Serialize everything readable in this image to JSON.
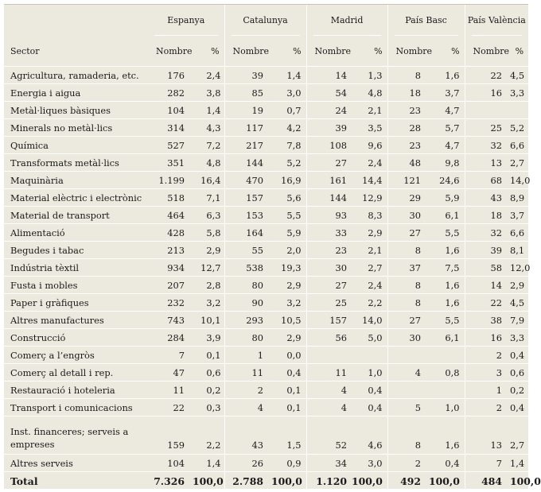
{
  "table": {
    "sector_header": "Sector",
    "regions": [
      "Espanya",
      "Catalunya",
      "Madrid",
      "País Basc",
      "País València"
    ],
    "sub_headers": {
      "count": "Nombre",
      "pct": "%"
    },
    "rows": [
      {
        "sector": "Agricultura, ramaderia, etc.",
        "values": [
          "176",
          "2,4",
          "39",
          "1,4",
          "14",
          "1,3",
          "8",
          "1,6",
          "22",
          "4,5"
        ]
      },
      {
        "sector": "Energia i aigua",
        "values": [
          "282",
          "3,8",
          "85",
          "3,0",
          "54",
          "4,8",
          "18",
          "3,7",
          "16",
          "3,3"
        ]
      },
      {
        "sector": "Metàl·liques bàsiques",
        "values": [
          "104",
          "1,4",
          "19",
          "0,7",
          "24",
          "2,1",
          "23",
          "4,7",
          "",
          ""
        ]
      },
      {
        "sector": "Minerals no metàl·lics",
        "values": [
          "314",
          "4,3",
          "117",
          "4,2",
          "39",
          "3,5",
          "28",
          "5,7",
          "25",
          "5,2"
        ]
      },
      {
        "sector": "Química",
        "values": [
          "527",
          "7,2",
          "217",
          "7,8",
          "108",
          "9,6",
          "23",
          "4,7",
          "32",
          "6,6"
        ]
      },
      {
        "sector": "Transformats metàl·lics",
        "values": [
          "351",
          "4,8",
          "144",
          "5,2",
          "27",
          "2,4",
          "48",
          "9,8",
          "13",
          "2,7"
        ]
      },
      {
        "sector": "Maquinària",
        "values": [
          "1.199",
          "16,4",
          "470",
          "16,9",
          "161",
          "14,4",
          "121",
          "24,6",
          "68",
          "14,0"
        ]
      },
      {
        "sector": "Material elèctric i electrònic",
        "values": [
          "518",
          "7,1",
          "157",
          "5,6",
          "144",
          "12,9",
          "29",
          "5,9",
          "43",
          "8,9"
        ]
      },
      {
        "sector": "Material de transport",
        "values": [
          "464",
          "6,3",
          "153",
          "5,5",
          "93",
          "8,3",
          "30",
          "6,1",
          "18",
          "3,7"
        ]
      },
      {
        "sector": "Alimentació",
        "values": [
          "428",
          "5,8",
          "164",
          "5,9",
          "33",
          "2,9",
          "27",
          "5,5",
          "32",
          "6,6"
        ]
      },
      {
        "sector": "Begudes i tabac",
        "values": [
          "213",
          "2,9",
          "55",
          "2,0",
          "23",
          "2,1",
          "8",
          "1,6",
          "39",
          "8,1"
        ]
      },
      {
        "sector": "Indústria tèxtil",
        "values": [
          "934",
          "12,7",
          "538",
          "19,3",
          "30",
          "2,7",
          "37",
          "7,5",
          "58",
          "12,0"
        ]
      },
      {
        "sector": "Fusta i mobles",
        "values": [
          "207",
          "2,8",
          "80",
          "2,9",
          "27",
          "2,4",
          "8",
          "1,6",
          "14",
          "2,9"
        ]
      },
      {
        "sector": "Paper i gràfiques",
        "values": [
          "232",
          "3,2",
          "90",
          "3,2",
          "25",
          "2,2",
          "8",
          "1,6",
          "22",
          "4,5"
        ]
      },
      {
        "sector": "Altres manufactures",
        "values": [
          "743",
          "10,1",
          "293",
          "10,5",
          "157",
          "14,0",
          "27",
          "5,5",
          "38",
          "7,9"
        ]
      },
      {
        "sector": "Construcció",
        "values": [
          "284",
          "3,9",
          "80",
          "2,9",
          "56",
          "5,0",
          "30",
          "6,1",
          "16",
          "3,3"
        ]
      },
      {
        "sector": "Comerç a l’engròs",
        "values": [
          "7",
          "0,1",
          "1",
          "0,0",
          "",
          "",
          "",
          "",
          "2",
          "0,4"
        ]
      },
      {
        "sector": "Comerç al detall i rep.",
        "values": [
          "47",
          "0,6",
          "11",
          "0,4",
          "11",
          "1,0",
          "4",
          "0,8",
          "3",
          "0,6"
        ]
      },
      {
        "sector": "Restauració i hoteleria",
        "values": [
          "11",
          "0,2",
          "2",
          "0,1",
          "4",
          "0,4",
          "",
          "",
          "1",
          "0,2"
        ]
      },
      {
        "sector": "Transport i comunicacions",
        "values": [
          "22",
          "0,3",
          "4",
          "0,1",
          "4",
          "0,4",
          "5",
          "1,0",
          "2",
          "0,4"
        ]
      },
      {
        "sector": "Inst. financeres; serveis a empreses",
        "values": [
          "159",
          "2,2",
          "43",
          "1,5",
          "52",
          "4,6",
          "8",
          "1,6",
          "13",
          "2,7"
        ],
        "tall": true
      },
      {
        "sector": "Altres serveis",
        "values": [
          "104",
          "1,4",
          "26",
          "0,9",
          "34",
          "3,0",
          "2",
          "0,4",
          "7",
          "1,4"
        ]
      }
    ],
    "total": {
      "sector": "Total",
      "values": [
        "7.326",
        "100,0",
        "2.788",
        "100,0",
        "1.120",
        "100,0",
        "492",
        "100,0",
        "484",
        "100,0"
      ]
    }
  }
}
